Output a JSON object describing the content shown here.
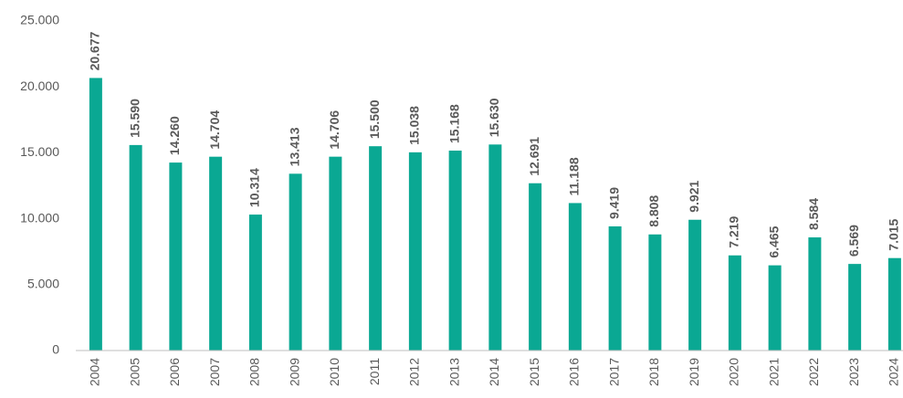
{
  "chart_data": {
    "type": "bar",
    "categories": [
      "2004",
      "2005",
      "2006",
      "2007",
      "2008",
      "2009",
      "2010",
      "2011",
      "2012",
      "2013",
      "2014",
      "2015",
      "2016",
      "2017",
      "2018",
      "2019",
      "2020",
      "2021",
      "2022",
      "2023",
      "2024"
    ],
    "values": [
      20677,
      15590,
      14260,
      14704,
      10314,
      13413,
      14706,
      15500,
      15038,
      15168,
      15630,
      12691,
      11188,
      9419,
      8808,
      9921,
      7219,
      6465,
      8584,
      6569,
      7015
    ],
    "value_labels": [
      "20.677",
      "15.590",
      "14.260",
      "14.704",
      "10.314",
      "13.413",
      "14.706",
      "15.500",
      "15.038",
      "15.168",
      "15.630",
      "12.691",
      "11.188",
      "9.419",
      "8.808",
      "9.921",
      "7.219",
      "6.465",
      "8.584",
      "6.569",
      "7.015"
    ],
    "color": "#0aa893",
    "ylim": [
      0,
      25000
    ],
    "yticks": [
      0,
      {
        "value": 5000,
        "label": "5.000"
      },
      {
        "value": 10000,
        "label": "10.000"
      },
      {
        "value": 15000,
        "label": "15.000"
      },
      {
        "value": 20000,
        "label": "20.000"
      },
      {
        "value": 25000,
        "label": "25.000"
      }
    ],
    "grid": false
  }
}
